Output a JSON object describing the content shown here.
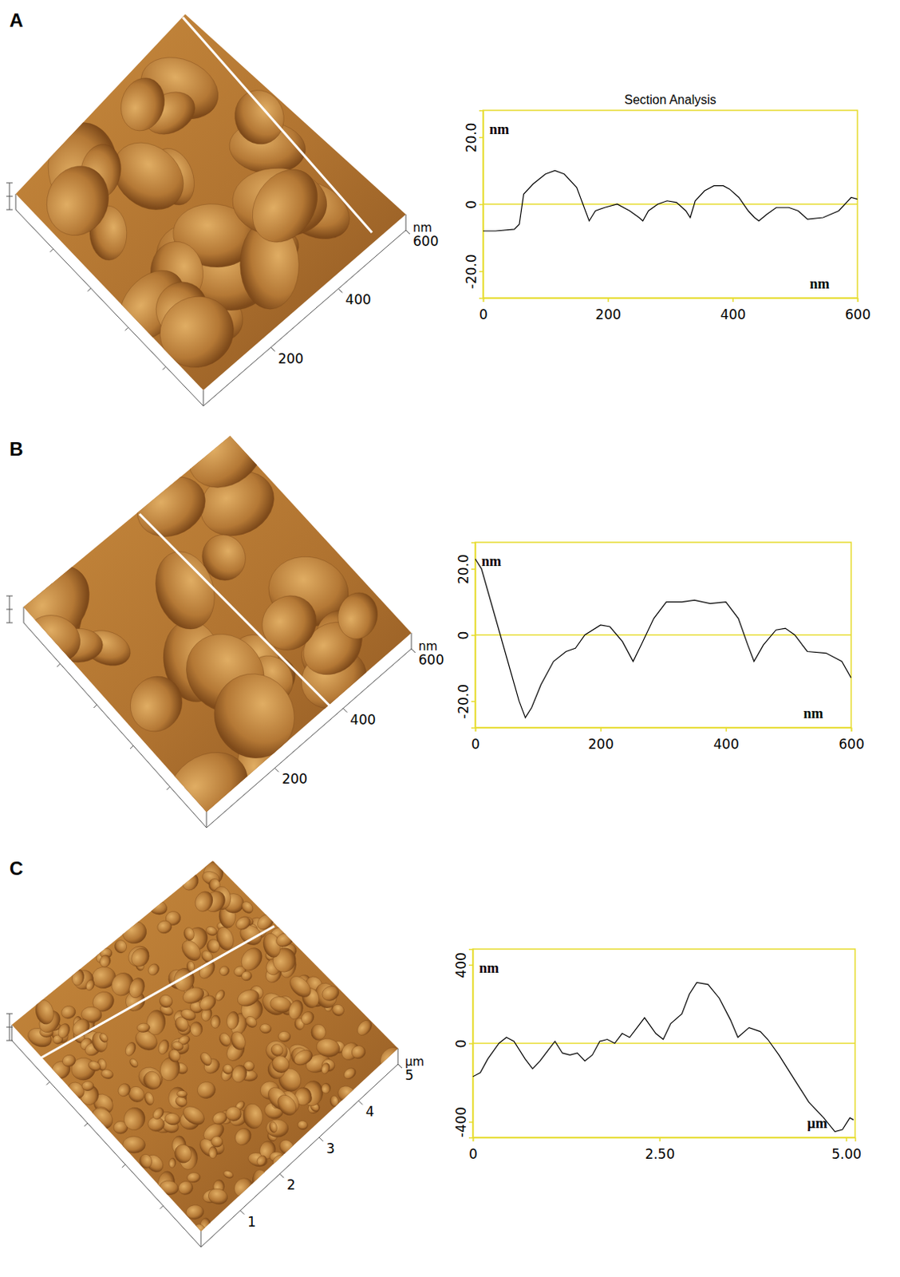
{
  "chart_data": [
    {
      "type": "line",
      "panel": "A",
      "title": "Section Analysis",
      "y_label": "nm",
      "x_label": "nm",
      "color": "#000000",
      "xlim": [
        0,
        600
      ],
      "ylim": [
        -28,
        28
      ],
      "xticks": [
        0,
        200,
        400,
        600
      ],
      "yticks": [
        {
          "value": -20,
          "label": "-20.0"
        },
        0,
        {
          "value": 20,
          "label": "20.0"
        }
      ],
      "x": [
        0,
        20,
        50,
        58,
        65,
        80,
        100,
        115,
        130,
        150,
        160,
        170,
        180,
        195,
        215,
        235,
        250,
        256,
        265,
        280,
        295,
        310,
        325,
        332,
        340,
        355,
        370,
        385,
        395,
        410,
        425,
        435,
        442,
        455,
        470,
        490,
        505,
        520,
        545,
        570,
        590,
        600
      ],
      "values": [
        -8,
        -8,
        -7.5,
        -6,
        3,
        6,
        9,
        10,
        9,
        5,
        0,
        -5,
        -2,
        -1,
        0,
        -2,
        -4,
        -5,
        -2,
        0,
        1,
        0.5,
        -2,
        -4,
        1,
        4,
        5.5,
        5.5,
        4.5,
        2,
        -2,
        -4,
        -5,
        -3,
        -1,
        -1,
        -2,
        -4.5,
        -4,
        -2,
        2,
        1.5
      ]
    },
    {
      "type": "line",
      "panel": "B",
      "y_label": "nm",
      "x_label": "nm",
      "color": "#000000",
      "xlim": [
        0,
        600
      ],
      "ylim": [
        -28,
        28
      ],
      "xticks": [
        0,
        200,
        400,
        600
      ],
      "yticks": [
        {
          "value": -20,
          "label": "-20.0"
        },
        0,
        {
          "value": 20,
          "label": "20.0"
        }
      ],
      "x": [
        0,
        10,
        25,
        40,
        55,
        70,
        80,
        90,
        105,
        125,
        145,
        160,
        175,
        200,
        215,
        235,
        252,
        265,
        285,
        305,
        330,
        350,
        375,
        400,
        420,
        435,
        445,
        460,
        480,
        495,
        510,
        530,
        560,
        585,
        600
      ],
      "values": [
        23,
        20,
        10,
        0,
        -10,
        -20,
        -25,
        -22,
        -15,
        -8,
        -5,
        -4,
        0,
        3,
        2.5,
        -2,
        -8,
        -3,
        5,
        10,
        10,
        10.5,
        9.5,
        10,
        5,
        -3,
        -8,
        -3,
        1.5,
        2,
        0,
        -5,
        -5.5,
        -8,
        -13
      ]
    },
    {
      "type": "line",
      "panel": "C",
      "y_label": "nm",
      "x_label": "µm",
      "color": "#000000",
      "xlim": [
        0,
        5.12
      ],
      "ylim": [
        -480,
        480
      ],
      "xticks": [
        0,
        {
          "value": 2.5,
          "label": "2.50"
        },
        {
          "value": 5,
          "label": "5.00"
        }
      ],
      "yticks": [
        -400,
        0,
        400
      ],
      "x": [
        0,
        0.1,
        0.2,
        0.35,
        0.45,
        0.55,
        0.7,
        0.8,
        0.9,
        1.0,
        1.1,
        1.2,
        1.3,
        1.4,
        1.5,
        1.6,
        1.7,
        1.8,
        1.9,
        2.0,
        2.1,
        2.2,
        2.3,
        2.45,
        2.55,
        2.65,
        2.8,
        2.9,
        3.0,
        3.15,
        3.3,
        3.45,
        3.55,
        3.7,
        3.85,
        3.95,
        4.1,
        4.3,
        4.5,
        4.7,
        4.85,
        4.95,
        5.05,
        5.1
      ],
      "values": [
        -170,
        -150,
        -80,
        0,
        30,
        10,
        -80,
        -130,
        -90,
        -40,
        10,
        -50,
        -60,
        -50,
        -90,
        -60,
        10,
        20,
        0,
        50,
        30,
        80,
        130,
        50,
        20,
        100,
        150,
        250,
        310,
        300,
        230,
        120,
        30,
        80,
        60,
        20,
        -60,
        -180,
        -300,
        -380,
        -450,
        -440,
        -380,
        -390
      ]
    }
  ],
  "images": [
    {
      "panel": "A",
      "ticks": [
        200,
        400,
        600
      ],
      "unit": "nm"
    },
    {
      "panel": "B",
      "ticks": [
        200,
        400,
        600
      ],
      "unit": "nm"
    },
    {
      "panel": "C",
      "ticks": [
        1,
        2,
        3,
        4,
        5
      ],
      "unit": "µm"
    }
  ]
}
